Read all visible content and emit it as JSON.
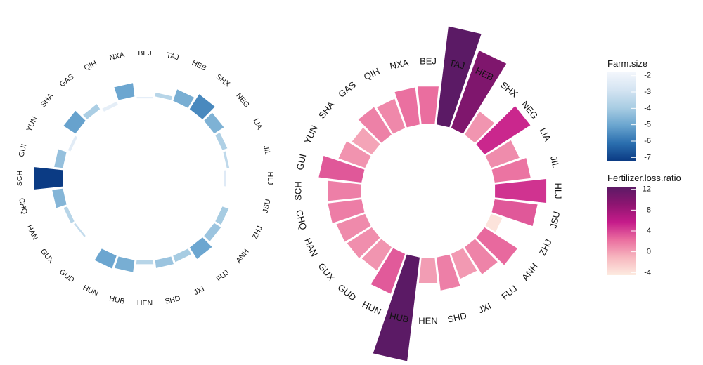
{
  "chart_data": [
    {
      "type": "radial-bar",
      "name": "farm-size-chart",
      "fill_variable": "Farm.size",
      "categories": [
        "BEJ",
        "TAJ",
        "HEB",
        "SHX",
        "NEG",
        "LIA",
        "JIL",
        "HLJ",
        "JSU",
        "ZHJ",
        "ANH",
        "FUJ",
        "JXI",
        "SHD",
        "HEN",
        "HUB",
        "HUN",
        "GUD",
        "GUX",
        "HAN",
        "CHQ",
        "SCH",
        "GUI",
        "YUN",
        "SHA",
        "GAS",
        "QIH",
        "NXA"
      ],
      "values": [
        -2.6,
        -3.6,
        -4.8,
        -5.6,
        -4.7,
        -3.8,
        -3.4,
        -2.5,
        -3.0,
        -4.0,
        -4.2,
        -5.0,
        -4.0,
        -4.2,
        -3.6,
        -4.8,
        -5.0,
        -2.9,
        -3.3,
        -3.6,
        -4.6,
        -7.2,
        -4.3,
        -2.4,
        -5.1,
        -3.9,
        -2.3,
        -5.0
      ],
      "scale": {
        "min": -7.2,
        "max": -1.8,
        "colors": [
          "#0b3b84",
          "#2b6faf",
          "#6aa5cf",
          "#a9cde3",
          "#d4e4f2",
          "#f3f6fc"
        ]
      },
      "legend": {
        "title": "Farm.size",
        "ticks": [
          -2,
          -3,
          -4,
          -5,
          -6,
          -7
        ]
      }
    },
    {
      "type": "radial-bar",
      "name": "fertilizer-loss-chart",
      "fill_variable": "Fertilizer.loss.ratio",
      "categories": [
        "BEJ",
        "TAJ",
        "HEB",
        "SHX",
        "NEG",
        "LIA",
        "JIL",
        "HLJ",
        "JSU",
        "ZHJ",
        "ANH",
        "FUJ",
        "JXI",
        "SHD",
        "HEN",
        "HUB",
        "HUN",
        "GUD",
        "GUX",
        "HAN",
        "CHQ",
        "SCH",
        "GUI",
        "YUN",
        "SHA",
        "GAS",
        "QIH",
        "NXA"
      ],
      "values": [
        2.3,
        13.0,
        10.1,
        0.5,
        5.2,
        0.9,
        2.0,
        4.7,
        3.2,
        -4.0,
        2.5,
        1.3,
        0.3,
        1.5,
        0.1,
        14.0,
        3.1,
        0.5,
        0.8,
        1.0,
        1.6,
        1.5,
        3.2,
        0.6,
        -0.2,
        1.4,
        1.1,
        2.2
      ],
      "scale": {
        "min": -4.5,
        "max": 12.5,
        "colors": [
          "#fdebe0",
          "#f7b7bf",
          "#ea6e9f",
          "#c51b8a",
          "#8e1571",
          "#5b1a65"
        ]
      },
      "legend": {
        "title": "Fertilizer.loss.ratio",
        "ticks": [
          12,
          8,
          4,
          0,
          -4
        ]
      }
    }
  ]
}
